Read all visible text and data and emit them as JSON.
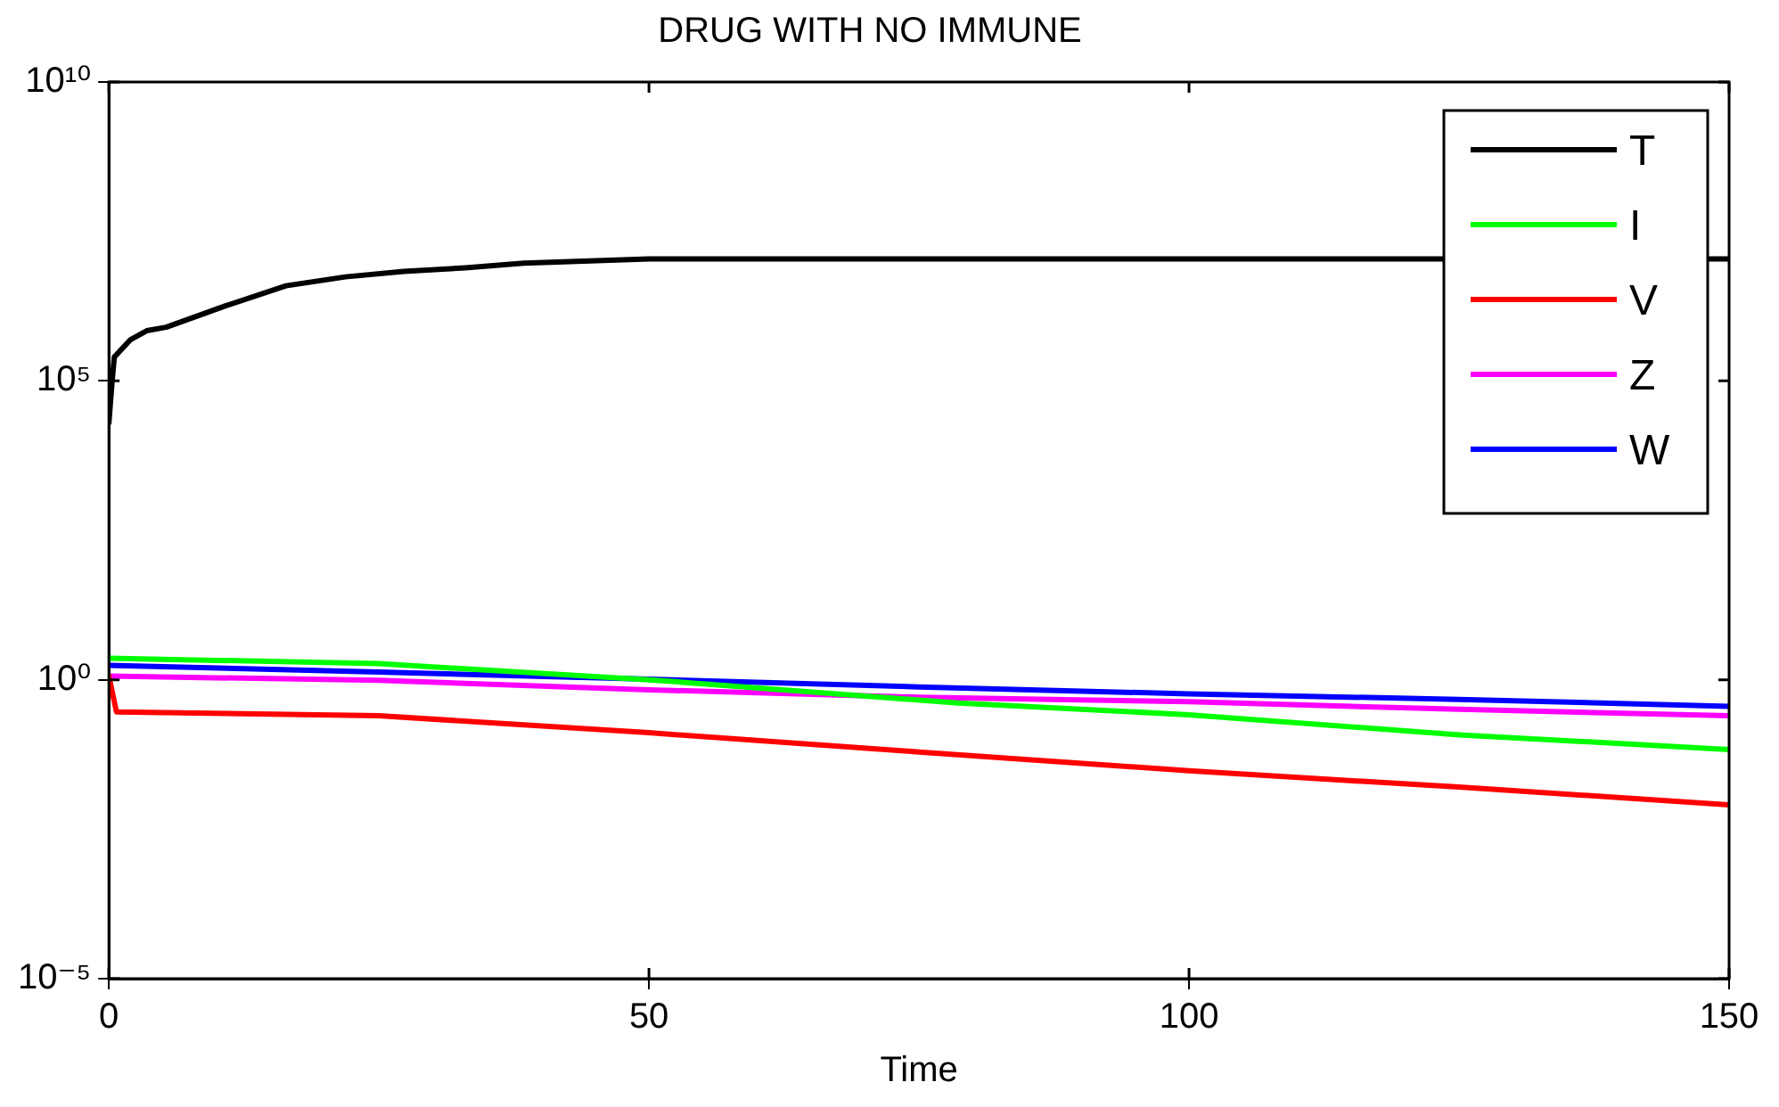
{
  "chart_data": {
    "type": "line",
    "title": "DRUG WITH NO IMMUNE",
    "xlabel": "Time",
    "log": "y",
    "legend": "top right",
    "grid": false,
    "marker": "none",
    "line_style": "solid",
    "xlim": [
      0,
      150
    ],
    "xticks": [
      0,
      50,
      100,
      150
    ],
    "ylim": [
      1e-05,
      10000000000
    ],
    "yticks": [
      {
        "value": 1e-05,
        "label": "10⁻⁵"
      },
      {
        "value": 1,
        "label": "10⁰"
      },
      {
        "value": 100000,
        "label": "10⁵"
      },
      {
        "value": 10000000000,
        "label": "10¹⁰"
      }
    ],
    "series": [
      {
        "name": "T",
        "color": "#000000",
        "x": [
          0,
          0.3,
          0.5,
          2,
          3.5,
          5.3,
          10.8,
          16.4,
          21.9,
          27.3,
          33,
          38.4,
          50,
          100,
          150
        ],
        "values": [
          20000,
          100000,
          250000,
          490000,
          690000,
          790000,
          1800000,
          3900000,
          5500000,
          6800000,
          7800000,
          9300000,
          11000000,
          11000000,
          11000000
        ]
      },
      {
        "name": "I",
        "color": "#00ff00",
        "x": [
          0,
          25,
          50,
          78.6,
          100,
          125,
          150
        ],
        "values": [
          2.3,
          1.86,
          1.0,
          0.41,
          0.26,
          0.12,
          0.068
        ]
      },
      {
        "name": "V",
        "color": "#ff0000",
        "x": [
          0,
          0.7,
          25,
          50,
          75,
          100,
          125,
          150
        ],
        "values": [
          1.15,
          0.29,
          0.25,
          0.13,
          0.062,
          0.03,
          0.016,
          0.0081
        ]
      },
      {
        "name": "Z",
        "color": "#ff00ff",
        "x": [
          0,
          25,
          50,
          75,
          100,
          125,
          150
        ],
        "values": [
          1.15,
          0.98,
          0.68,
          0.51,
          0.43,
          0.32,
          0.25
        ]
      },
      {
        "name": "W",
        "color": "#0000ff",
        "x": [
          0,
          25,
          50,
          75,
          100,
          125,
          150
        ],
        "values": [
          1.74,
          1.35,
          1.02,
          0.76,
          0.58,
          0.47,
          0.36
        ]
      }
    ]
  }
}
